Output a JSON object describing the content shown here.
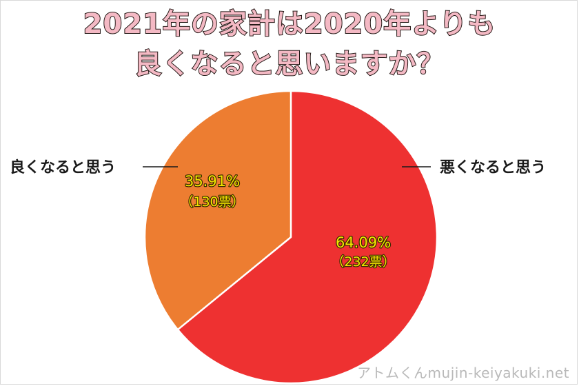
{
  "chart_data": {
    "type": "pie",
    "title": "2021年の家計は2020年よりも\n良くなると思いますか？",
    "title_lines": [
      "2021年の家計は2020年よりも",
      "良くなると思いますか？"
    ],
    "slices": [
      {
        "label": "悪くなると思う",
        "value": 64.09,
        "percent_text": "64.09%",
        "votes": 232,
        "votes_text": "（232票）",
        "color": "#ee3131"
      },
      {
        "label": "良くなると思う",
        "value": 35.91,
        "percent_text": "35.91%",
        "votes": 130,
        "votes_text": "（130票）",
        "color": "#ed7d31"
      }
    ],
    "start_angle": "12 o'clock",
    "direction": "clockwise",
    "legend": "none"
  },
  "watermark": "アトムくんmujin-keiyakuki.net"
}
